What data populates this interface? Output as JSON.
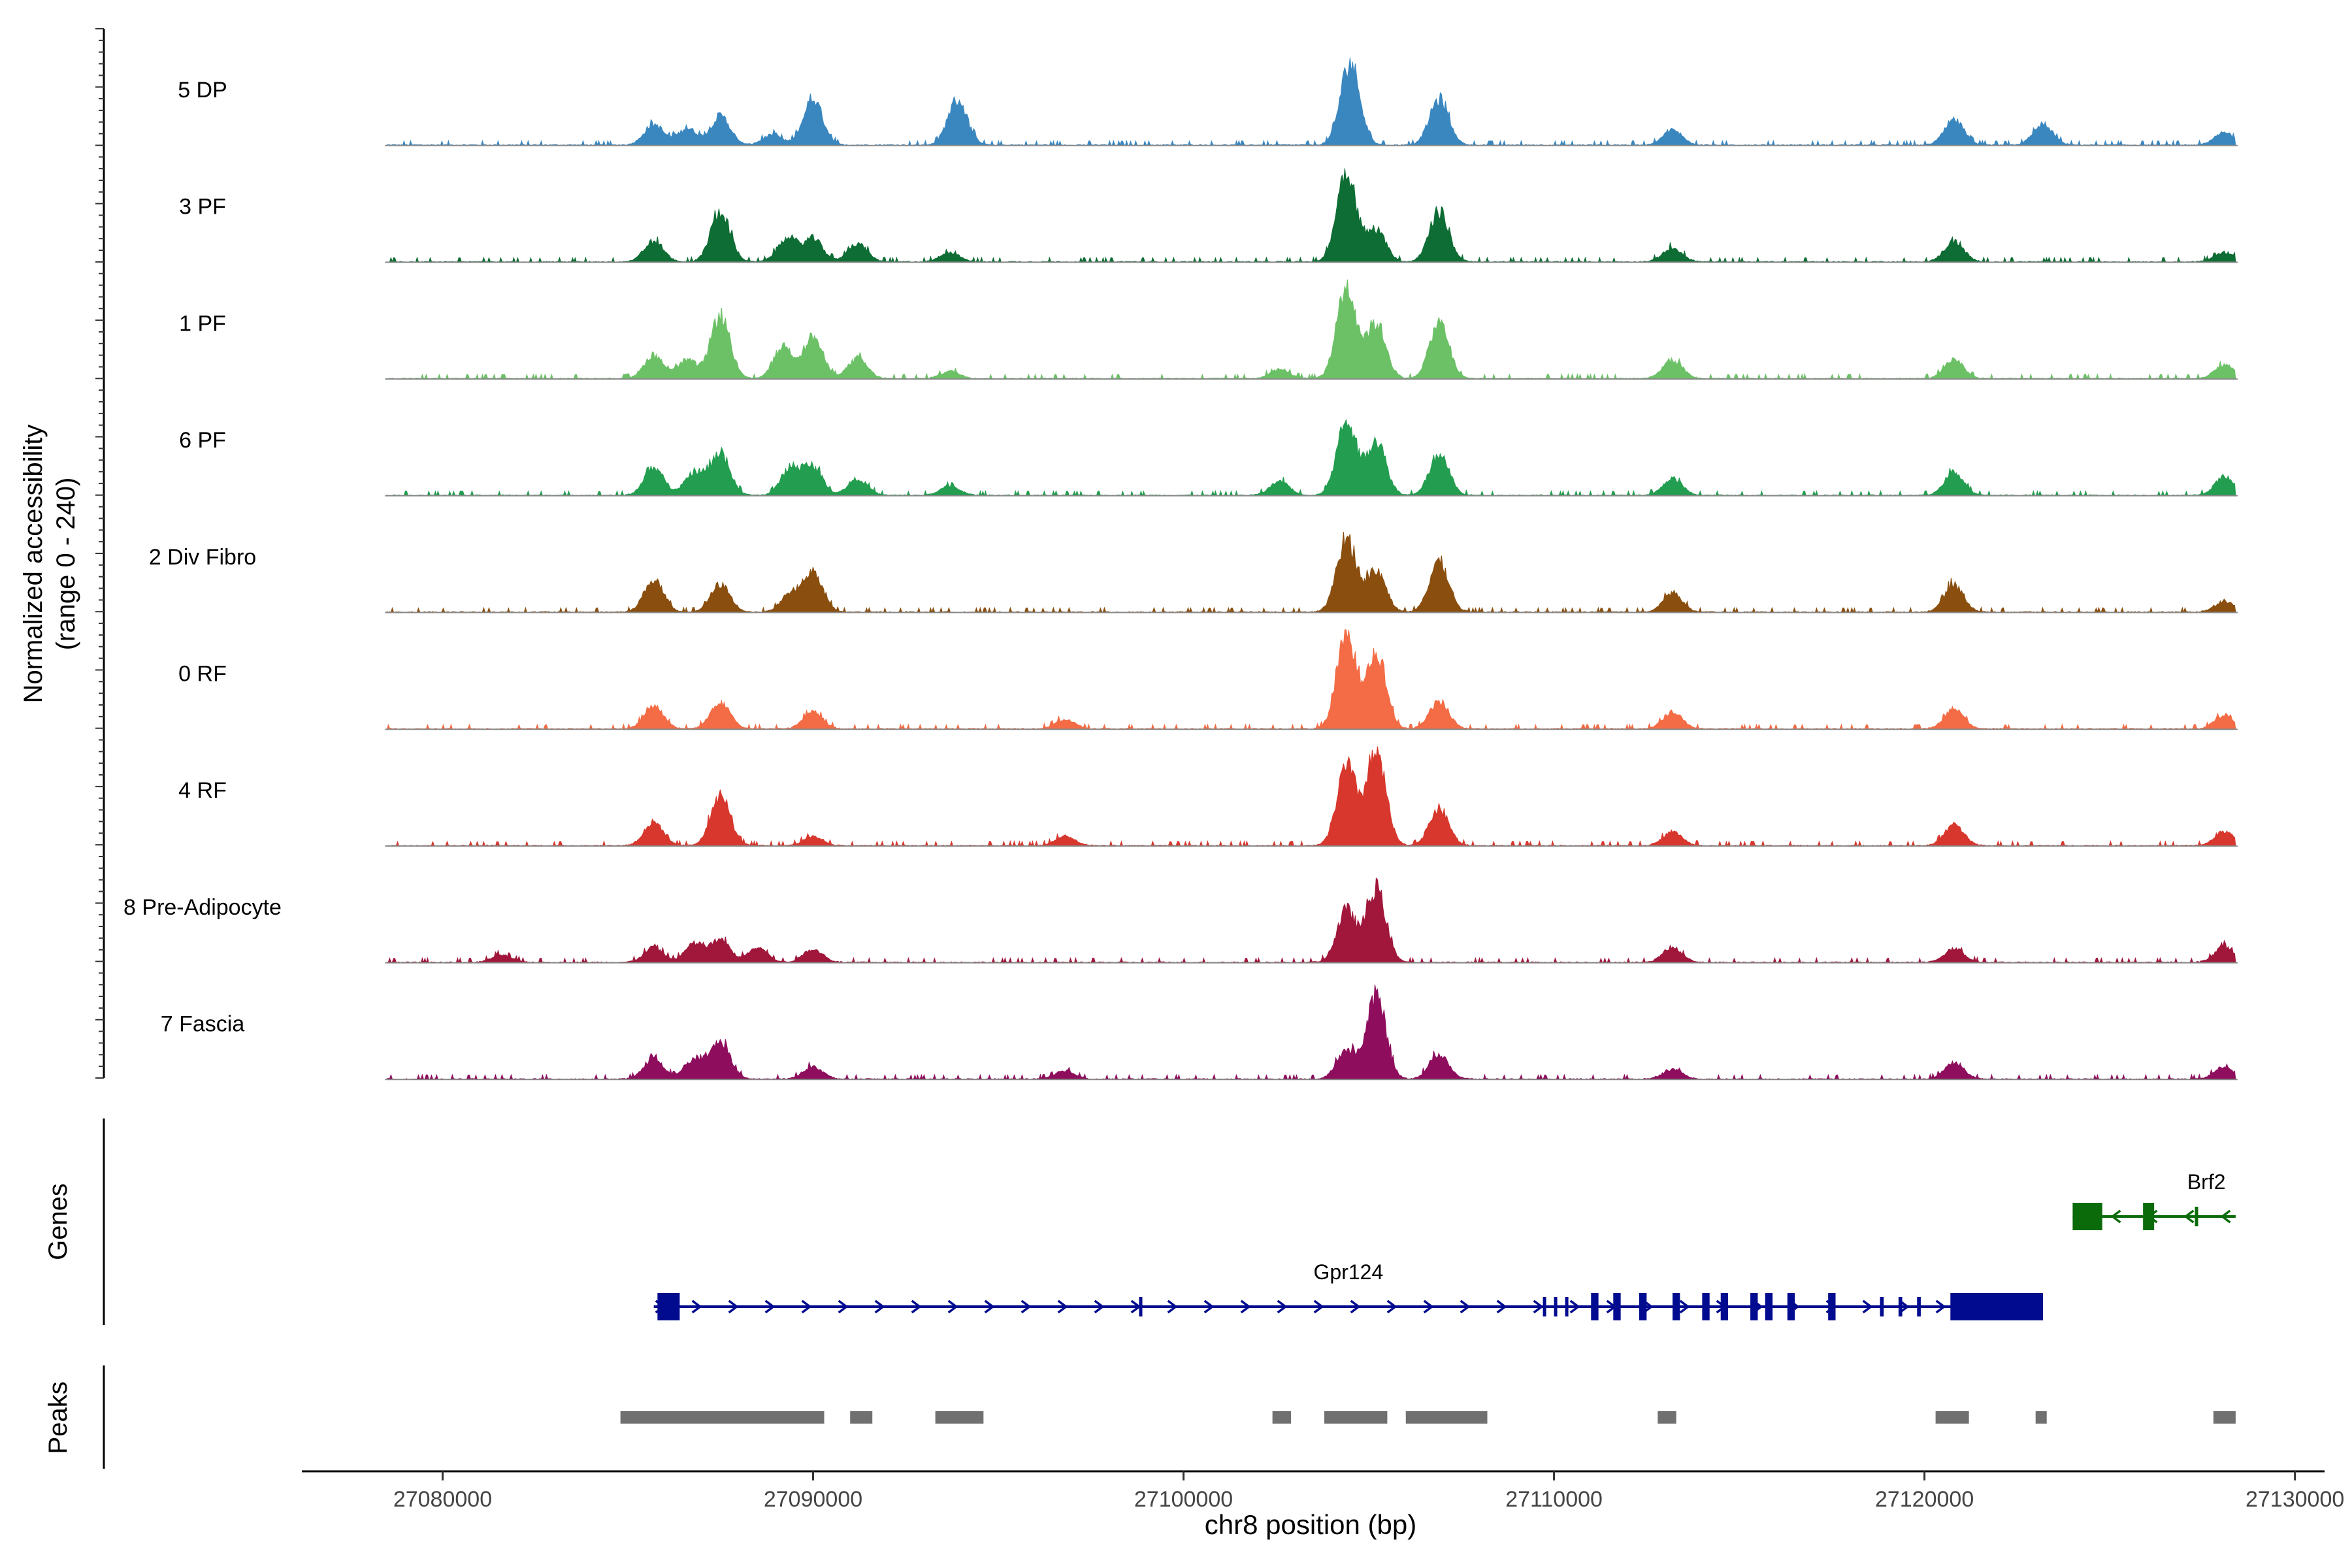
{
  "chart_data": {
    "type": "area",
    "title": "",
    "y_axis_label_line1": "Normalized accessibility",
    "y_axis_label_line2": "(range 0 - 240)",
    "ylim": [
      0,
      240
    ],
    "xlabel": "chr8 position (bp)",
    "xlim": [
      27076200,
      27130800
    ],
    "x_ticks": [
      27080000,
      27090000,
      27100000,
      27110000,
      27120000,
      27130000
    ],
    "x_tick_labels": [
      "27080000",
      "27090000",
      "27100000",
      "27110000",
      "27120000",
      "27130000"
    ],
    "signal_range": [
      27078500,
      27128400
    ],
    "peak_profile": [
      {
        "x": 27085700,
        "h": 0.25
      },
      {
        "x": 27086400,
        "h": 0.18
      },
      {
        "x": 27087000,
        "h": 0.2
      },
      {
        "x": 27087500,
        "h": 0.35
      },
      {
        "x": 27088700,
        "h": 0.15
      },
      {
        "x": 27089600,
        "h": 0.2
      },
      {
        "x": 27090000,
        "h": 0.3
      },
      {
        "x": 27091200,
        "h": 0.12
      },
      {
        "x": 27093700,
        "h": 0.1
      },
      {
        "x": 27096800,
        "h": 0.06
      },
      {
        "x": 27102600,
        "h": 0.08
      },
      {
        "x": 27104400,
        "h": 1.0
      },
      {
        "x": 27105200,
        "h": 0.7
      },
      {
        "x": 27106900,
        "h": 0.5
      },
      {
        "x": 27113200,
        "h": 0.15
      },
      {
        "x": 27120800,
        "h": 0.2
      },
      {
        "x": 27121200,
        "h": 0.12
      },
      {
        "x": 27123200,
        "h": 0.08
      },
      {
        "x": 27128100,
        "h": 0.15
      }
    ],
    "tracks": [
      {
        "label": "5 DP",
        "color": "#3a87c0",
        "scale": 0.9,
        "peaks": [
          {
            "x": 27085700,
            "h": 0.25
          },
          {
            "x": 27086600,
            "h": 0.2
          },
          {
            "x": 27087500,
            "h": 0.35
          },
          {
            "x": 27088900,
            "h": 0.12
          },
          {
            "x": 27090000,
            "h": 0.55
          },
          {
            "x": 27093900,
            "h": 0.55
          },
          {
            "x": 27104500,
            "h": 1.0
          },
          {
            "x": 27106900,
            "h": 0.55
          },
          {
            "x": 27113200,
            "h": 0.18
          },
          {
            "x": 27120800,
            "h": 0.3
          },
          {
            "x": 27123200,
            "h": 0.25
          },
          {
            "x": 27128100,
            "h": 0.15
          }
        ]
      },
      {
        "label": "3 PF",
        "color": "#0e6d34",
        "scale": 1.0,
        "peaks": [
          {
            "x": 27085700,
            "h": 0.22
          },
          {
            "x": 27087500,
            "h": 0.55
          },
          {
            "x": 27089300,
            "h": 0.25
          },
          {
            "x": 27090000,
            "h": 0.25
          },
          {
            "x": 27091200,
            "h": 0.2
          },
          {
            "x": 27093700,
            "h": 0.1
          },
          {
            "x": 27104400,
            "h": 1.0
          },
          {
            "x": 27105200,
            "h": 0.35
          },
          {
            "x": 27106900,
            "h": 0.55
          },
          {
            "x": 27113200,
            "h": 0.15
          },
          {
            "x": 27120800,
            "h": 0.22
          },
          {
            "x": 27128100,
            "h": 0.1
          }
        ]
      },
      {
        "label": "1 PF",
        "color": "#6cc167",
        "scale": 1.0,
        "peaks": [
          {
            "x": 27085700,
            "h": 0.25
          },
          {
            "x": 27086600,
            "h": 0.2
          },
          {
            "x": 27087500,
            "h": 0.68
          },
          {
            "x": 27089200,
            "h": 0.35
          },
          {
            "x": 27090000,
            "h": 0.45
          },
          {
            "x": 27091200,
            "h": 0.22
          },
          {
            "x": 27093700,
            "h": 0.08
          },
          {
            "x": 27102600,
            "h": 0.1
          },
          {
            "x": 27104400,
            "h": 1.0
          },
          {
            "x": 27105200,
            "h": 0.6
          },
          {
            "x": 27106900,
            "h": 0.6
          },
          {
            "x": 27113200,
            "h": 0.2
          },
          {
            "x": 27120800,
            "h": 0.2
          },
          {
            "x": 27128100,
            "h": 0.15
          }
        ]
      },
      {
        "label": "6 PF",
        "color": "#239d4f",
        "scale": 1.0,
        "peaks": [
          {
            "x": 27085700,
            "h": 0.3
          },
          {
            "x": 27086800,
            "h": 0.25
          },
          {
            "x": 27087500,
            "h": 0.45
          },
          {
            "x": 27089400,
            "h": 0.3
          },
          {
            "x": 27090000,
            "h": 0.3
          },
          {
            "x": 27091200,
            "h": 0.18
          },
          {
            "x": 27093700,
            "h": 0.1
          },
          {
            "x": 27102600,
            "h": 0.15
          },
          {
            "x": 27104400,
            "h": 0.8
          },
          {
            "x": 27105200,
            "h": 0.6
          },
          {
            "x": 27106900,
            "h": 0.45
          },
          {
            "x": 27113200,
            "h": 0.18
          },
          {
            "x": 27120800,
            "h": 0.25
          },
          {
            "x": 27128100,
            "h": 0.2
          }
        ]
      },
      {
        "label": "2 Div Fibro",
        "color": "#8a4e0e",
        "scale": 1.0,
        "peaks": [
          {
            "x": 27085700,
            "h": 0.35
          },
          {
            "x": 27087500,
            "h": 0.3
          },
          {
            "x": 27089400,
            "h": 0.2
          },
          {
            "x": 27090000,
            "h": 0.42
          },
          {
            "x": 27104400,
            "h": 0.8
          },
          {
            "x": 27105200,
            "h": 0.45
          },
          {
            "x": 27106900,
            "h": 0.55
          },
          {
            "x": 27113200,
            "h": 0.2
          },
          {
            "x": 27120800,
            "h": 0.3
          },
          {
            "x": 27128100,
            "h": 0.12
          }
        ]
      },
      {
        "label": "0 RF",
        "color": "#f36c45",
        "scale": 1.0,
        "peaks": [
          {
            "x": 27085700,
            "h": 0.25
          },
          {
            "x": 27087500,
            "h": 0.3
          },
          {
            "x": 27090000,
            "h": 0.18
          },
          {
            "x": 27096800,
            "h": 0.1
          },
          {
            "x": 27104400,
            "h": 1.0
          },
          {
            "x": 27105200,
            "h": 0.85
          },
          {
            "x": 27106900,
            "h": 0.3
          },
          {
            "x": 27113200,
            "h": 0.18
          },
          {
            "x": 27120800,
            "h": 0.22
          },
          {
            "x": 27128100,
            "h": 0.15
          }
        ]
      },
      {
        "label": "4 RF",
        "color": "#d7372c",
        "scale": 1.0,
        "peaks": [
          {
            "x": 27085700,
            "h": 0.25
          },
          {
            "x": 27087500,
            "h": 0.55
          },
          {
            "x": 27090000,
            "h": 0.1
          },
          {
            "x": 27096800,
            "h": 0.1
          },
          {
            "x": 27104400,
            "h": 0.85
          },
          {
            "x": 27105200,
            "h": 1.0
          },
          {
            "x": 27106900,
            "h": 0.4
          },
          {
            "x": 27113200,
            "h": 0.15
          },
          {
            "x": 27120800,
            "h": 0.22
          },
          {
            "x": 27128100,
            "h": 0.15
          }
        ]
      },
      {
        "label": "8 Pre-Adipocyte",
        "color": "#a0173b",
        "scale": 0.8,
        "peaks": [
          {
            "x": 27081600,
            "h": 0.1
          },
          {
            "x": 27085700,
            "h": 0.2
          },
          {
            "x": 27086800,
            "h": 0.25
          },
          {
            "x": 27087500,
            "h": 0.3
          },
          {
            "x": 27088500,
            "h": 0.2
          },
          {
            "x": 27090000,
            "h": 0.18
          },
          {
            "x": 27104400,
            "h": 0.7
          },
          {
            "x": 27105200,
            "h": 1.0
          },
          {
            "x": 27113200,
            "h": 0.2
          },
          {
            "x": 27120800,
            "h": 0.18
          },
          {
            "x": 27128100,
            "h": 0.22
          }
        ]
      },
      {
        "label": "7 Fascia",
        "color": "#8e0d5d",
        "scale": 0.9,
        "peaks": [
          {
            "x": 27085700,
            "h": 0.25
          },
          {
            "x": 27086800,
            "h": 0.25
          },
          {
            "x": 27087500,
            "h": 0.45
          },
          {
            "x": 27090000,
            "h": 0.15
          },
          {
            "x": 27096800,
            "h": 0.1
          },
          {
            "x": 27104400,
            "h": 0.35
          },
          {
            "x": 27105200,
            "h": 1.0
          },
          {
            "x": 27106900,
            "h": 0.3
          },
          {
            "x": 27113200,
            "h": 0.12
          },
          {
            "x": 27120800,
            "h": 0.2
          },
          {
            "x": 27128100,
            "h": 0.15
          }
        ]
      }
    ],
    "genes_label": "Genes",
    "genes": [
      {
        "name": "Brf2",
        "color": "#0b6b0b",
        "strand": "-",
        "start": 27124000,
        "end": 27128400,
        "row": 0,
        "exons": [
          {
            "s": 27124000,
            "e": 27124800,
            "big": true
          },
          {
            "s": 27125900,
            "e": 27126200,
            "big": true
          },
          {
            "s": 27127300,
            "e": 27127380,
            "big": false
          }
        ]
      },
      {
        "name": "Gpr124",
        "color": "#000b8f",
        "strand": "+",
        "start": 27085700,
        "end": 27123200,
        "row": 1,
        "exons": [
          {
            "s": 27085800,
            "e": 27086400,
            "big": true
          },
          {
            "s": 27098800,
            "e": 27098880,
            "big": false
          },
          {
            "s": 27109700,
            "e": 27109780,
            "big": false
          },
          {
            "s": 27110000,
            "e": 27110080,
            "big": false
          },
          {
            "s": 27110300,
            "e": 27110380,
            "big": false
          },
          {
            "s": 27111000,
            "e": 27111200,
            "big": true
          },
          {
            "s": 27111600,
            "e": 27111800,
            "big": true
          },
          {
            "s": 27112300,
            "e": 27112500,
            "big": true
          },
          {
            "s": 27113200,
            "e": 27113400,
            "big": true
          },
          {
            "s": 27114000,
            "e": 27114200,
            "big": true
          },
          {
            "s": 27114500,
            "e": 27114700,
            "big": true
          },
          {
            "s": 27115300,
            "e": 27115500,
            "big": true
          },
          {
            "s": 27115700,
            "e": 27115900,
            "big": true
          },
          {
            "s": 27116300,
            "e": 27116500,
            "big": true
          },
          {
            "s": 27117400,
            "e": 27117600,
            "big": true
          },
          {
            "s": 27118800,
            "e": 27118900,
            "big": false
          },
          {
            "s": 27119300,
            "e": 27119400,
            "big": false
          },
          {
            "s": 27119800,
            "e": 27119900,
            "big": false
          },
          {
            "s": 27120700,
            "e": 27123200,
            "big": true
          }
        ]
      }
    ],
    "peaks_label": "Peaks",
    "peak_regions": [
      {
        "start": 27084800,
        "end": 27090300
      },
      {
        "start": 27091000,
        "end": 27091600
      },
      {
        "start": 27093300,
        "end": 27094600
      },
      {
        "start": 27102400,
        "end": 27102900
      },
      {
        "start": 27103800,
        "end": 27105500
      },
      {
        "start": 27106000,
        "end": 27108200
      },
      {
        "start": 27112800,
        "end": 27113300
      },
      {
        "start": 27120300,
        "end": 27121200
      },
      {
        "start": 27123000,
        "end": 27123300
      },
      {
        "start": 27127800,
        "end": 27128400
      }
    ]
  }
}
